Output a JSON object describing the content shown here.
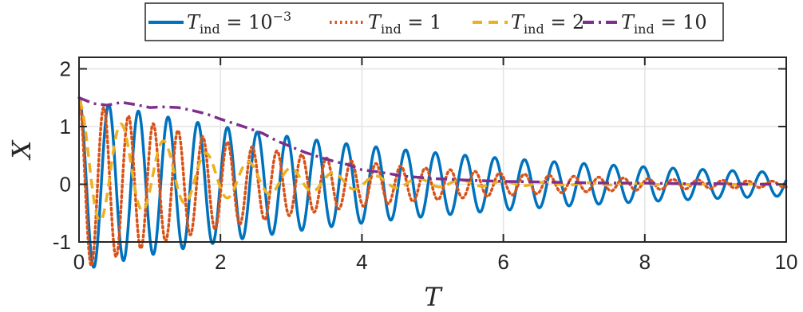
{
  "chart_data": {
    "type": "line",
    "title": "",
    "xlabel": "T",
    "ylabel": "X",
    "xlim": [
      0,
      10
    ],
    "ylim": [
      -1,
      2.2
    ],
    "xticks": [
      "0",
      "2",
      "4",
      "6",
      "8",
      "10"
    ],
    "yticks": [
      "-1",
      "0",
      "1",
      "2"
    ],
    "grid": true,
    "legend_placement": "top-outside",
    "series": [
      {
        "name": "T_ind = 10^-3",
        "label_main": "T",
        "label_sub": "ind",
        "label_rhs": " = 10",
        "label_sup": "−3",
        "color": "#0072BD",
        "style": "solid",
        "model": {
          "offset": 0.0,
          "amp": 1.5,
          "decay": 0.2,
          "period": 0.42,
          "noise": 0.0
        }
      },
      {
        "name": "T_ind = 1",
        "label_main": "T",
        "label_sub": "ind",
        "label_rhs": " = 1",
        "label_sup": "",
        "color": "#D95319",
        "style": "dotted",
        "model": {
          "offset": 0.0,
          "amp": 1.5,
          "decay": 0.34,
          "period": 0.35,
          "noise": 0.0
        }
      },
      {
        "name": "T_ind = 2",
        "label_main": "T",
        "label_sub": "ind",
        "label_rhs": " = 2",
        "label_sup": "",
        "color": "#EDB120",
        "style": "dashed",
        "model": {
          "offset": 0.35,
          "amp": 1.1,
          "decay": 0.55,
          "period": 0.6,
          "noise": 0.0
        }
      },
      {
        "name": "T_ind = 10",
        "label_main": "T",
        "label_sub": "ind",
        "label_rhs": " = 10",
        "label_sup": "",
        "color": "#7E2F8E",
        "style": "dashdot",
        "model": "points",
        "x": [
          0,
          0.2,
          0.4,
          0.6,
          0.8,
          1.0,
          1.2,
          1.4,
          1.6,
          1.8,
          2.0,
          2.2,
          2.4,
          2.6,
          2.8,
          3.0,
          3.2,
          3.4,
          3.6,
          3.8,
          4.0,
          4.2,
          4.4,
          4.6,
          4.8,
          5.0,
          5.5,
          6.0,
          6.5,
          7.0,
          7.5,
          8.0,
          8.5,
          9.0,
          9.5,
          10.0
        ],
        "y": [
          1.5,
          1.4,
          1.37,
          1.42,
          1.38,
          1.33,
          1.34,
          1.33,
          1.28,
          1.22,
          1.13,
          1.05,
          0.97,
          0.88,
          0.75,
          0.65,
          0.55,
          0.47,
          0.4,
          0.34,
          0.25,
          0.22,
          0.18,
          0.14,
          0.12,
          0.1,
          0.07,
          0.05,
          0.04,
          0.03,
          0.02,
          0.02,
          0.01,
          0.01,
          0.0,
          0.0
        ]
      }
    ]
  }
}
